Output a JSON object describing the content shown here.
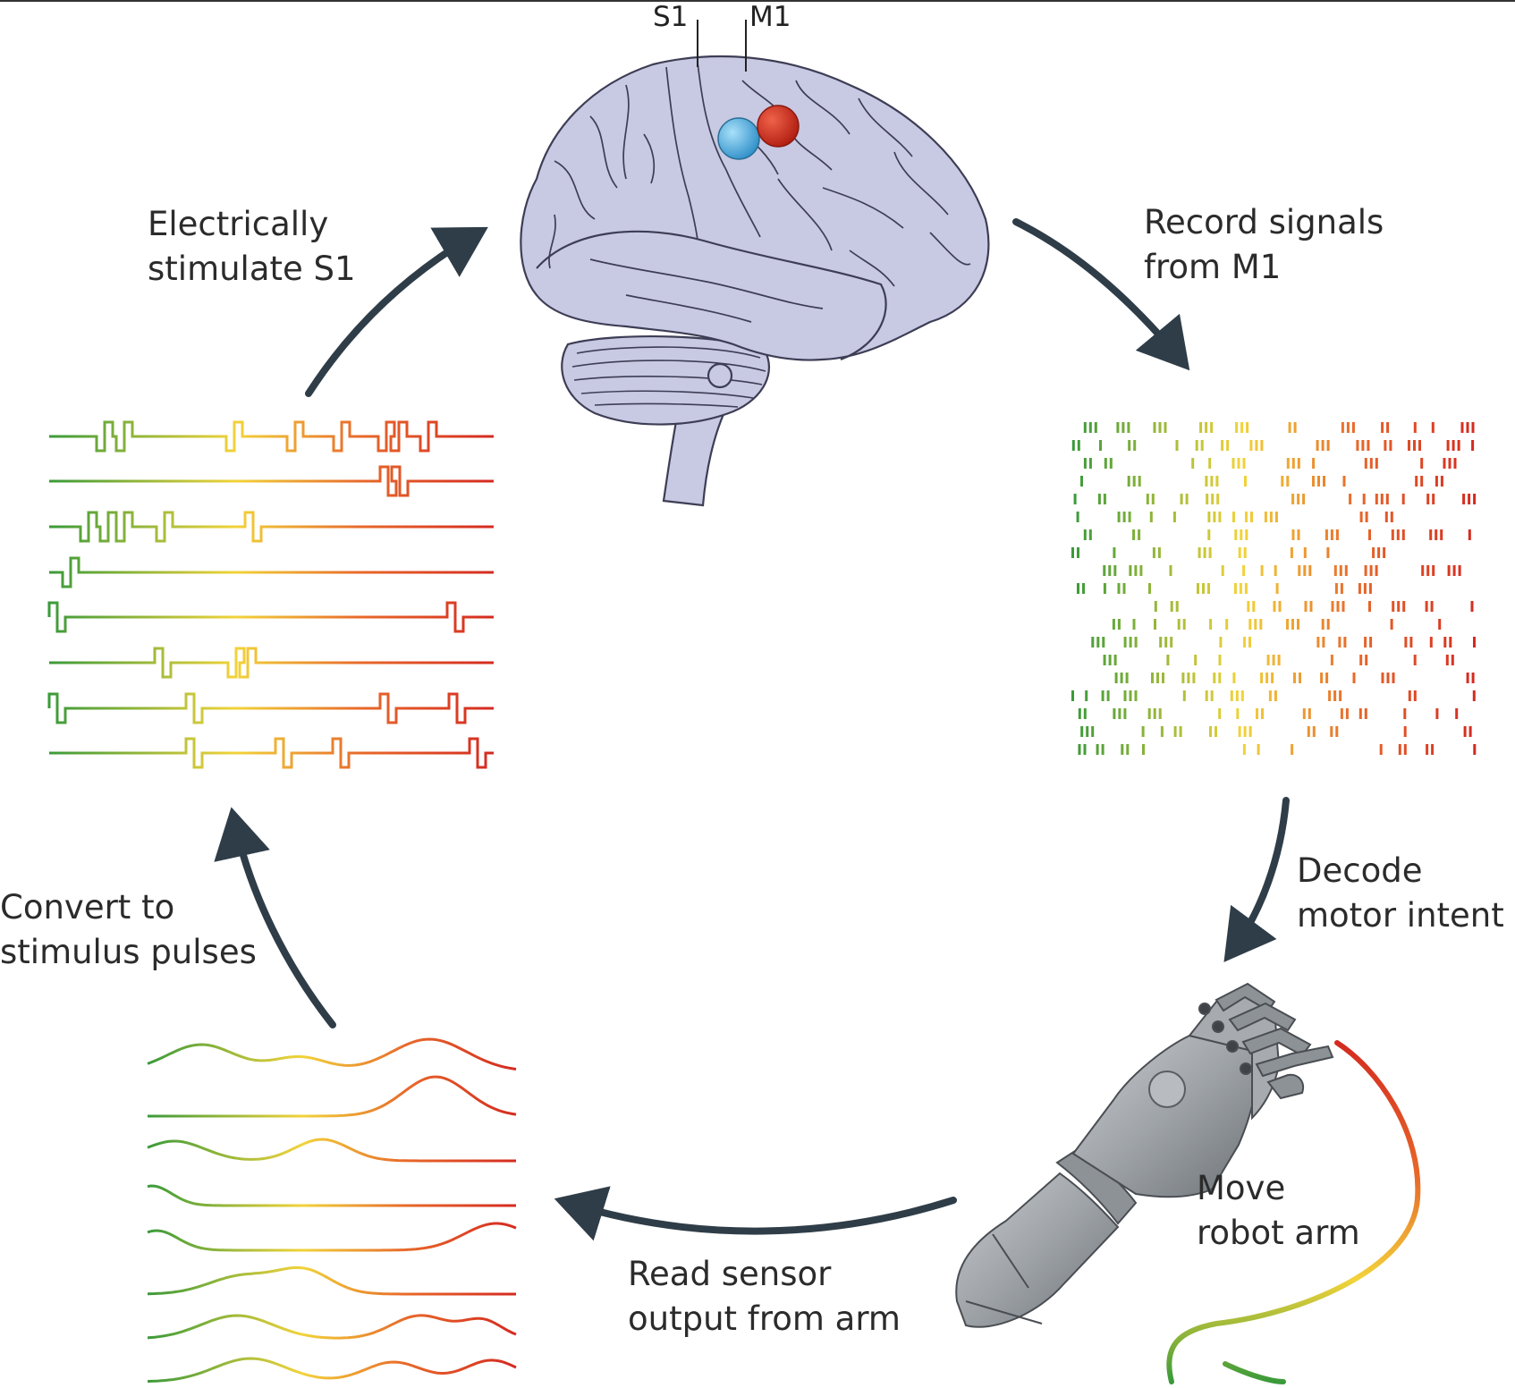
{
  "labels": {
    "s1": "S1",
    "m1": "M1",
    "record": [
      "Record signals",
      "from M1"
    ],
    "decode": [
      "Decode",
      "motor intent"
    ],
    "move": [
      "Move",
      "robot arm"
    ],
    "read": [
      "Read sensor",
      "output from arm"
    ],
    "convert": [
      "Convert to",
      "stimulus pulses"
    ],
    "stimulate": [
      "Electrically",
      "stimulate S1"
    ]
  },
  "colors": {
    "arrow": "#2f3d48",
    "s1_electrode": "#4db6e8",
    "m1_electrode": "#d9301c",
    "brain_fill": "#c8c9e2",
    "brain_line": "#3d3d55",
    "gradient": [
      "#3a9a3a",
      "#f2d33a",
      "#e8692a",
      "#d42a20"
    ]
  },
  "icons": [
    "brain-icon",
    "robot-arm-icon",
    "raster-plot-icon",
    "pulse-trains-icon",
    "sensor-waves-icon"
  ]
}
